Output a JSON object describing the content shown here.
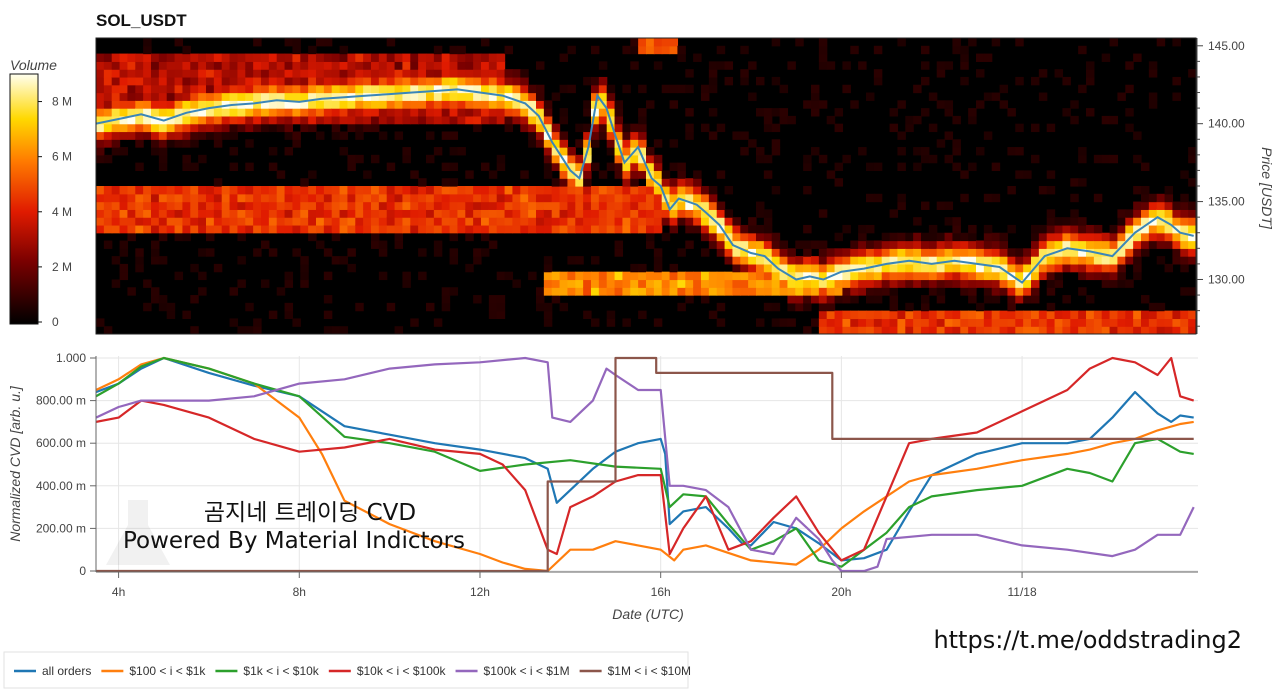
{
  "chart_data": [
    {
      "type": "heatmap",
      "title": "SOL_USDT",
      "ylabel": "Price [USDT]",
      "yticks": [
        "130.00",
        "135.00",
        "140.00",
        "145.00"
      ],
      "ylim": [
        126.5,
        145.5
      ],
      "colorbar": {
        "label": "Volume",
        "ticks": [
          "0",
          "2 M",
          "4 M",
          "6 M",
          "8 M"
        ],
        "range": [
          0,
          9000000
        ]
      },
      "price_line": {
        "name": "price",
        "color": "#3a86b8",
        "x": [
          3.5,
          4.0,
          4.5,
          5.0,
          5.5,
          6.0,
          6.5,
          7.0,
          7.5,
          8.0,
          8.5,
          9.0,
          9.5,
          10.0,
          10.5,
          11.0,
          11.5,
          12.0,
          12.5,
          13.0,
          13.3,
          13.6,
          14.0,
          14.2,
          14.4,
          14.6,
          14.8,
          15.0,
          15.2,
          15.5,
          15.8,
          16.0,
          16.2,
          16.4,
          16.6,
          16.8,
          17.0,
          17.3,
          17.6,
          18.0,
          18.3,
          18.6,
          19.0,
          19.3,
          19.6,
          20.0,
          20.5,
          21.0,
          21.5,
          22.0,
          22.5,
          23.0,
          23.5,
          24.0,
          24.5,
          25.0,
          25.5,
          26.0,
          26.5,
          27.0,
          27.3,
          27.5,
          27.8
        ],
        "y": [
          140.0,
          140.3,
          140.6,
          140.2,
          140.7,
          141.0,
          141.2,
          141.3,
          141.5,
          141.4,
          141.6,
          141.7,
          141.8,
          141.9,
          142.0,
          142.1,
          142.2,
          142.0,
          141.8,
          141.3,
          140.5,
          138.8,
          137.0,
          136.5,
          138.5,
          141.8,
          141.0,
          139.2,
          137.5,
          138.5,
          136.5,
          136.0,
          134.5,
          135.2,
          135.0,
          134.8,
          134.3,
          133.5,
          132.2,
          131.7,
          131.5,
          130.7,
          130.0,
          130.2,
          130.0,
          130.5,
          130.7,
          131.0,
          131.2,
          131.0,
          131.2,
          131.0,
          130.8,
          129.8,
          131.5,
          132.0,
          131.8,
          131.5,
          133.0,
          134.0,
          133.5,
          133.0,
          132.8
        ]
      }
    },
    {
      "type": "line",
      "ylabel": "Normalized CVD [arb. u.]",
      "xlabel": "Date (UTC)",
      "xticks": [
        "4h",
        "8h",
        "12h",
        "16h",
        "20h",
        "11/18"
      ],
      "yticks": [
        "0",
        "200.00 m",
        "400.00 m",
        "600.00 m",
        "800.00 m",
        "1.000"
      ],
      "ylim": [
        0,
        1
      ],
      "series": [
        {
          "name": "all orders",
          "color": "#1f77b4",
          "x": [
            3.5,
            4.0,
            4.5,
            5.0,
            6.0,
            7.0,
            8.0,
            9.0,
            10.0,
            11.0,
            12.0,
            13.0,
            13.5,
            13.7,
            14.0,
            14.5,
            15.0,
            15.5,
            16.0,
            16.1,
            16.2,
            16.5,
            17.0,
            17.5,
            17.8,
            18.0,
            18.5,
            19.0,
            19.5,
            20.0,
            20.5,
            21.0,
            21.5,
            22.0,
            23.0,
            24.0,
            25.0,
            25.5,
            26.0,
            26.5,
            27.0,
            27.3,
            27.5,
            27.8
          ],
          "y": [
            0.84,
            0.88,
            0.95,
            1.0,
            0.93,
            0.87,
            0.82,
            0.68,
            0.64,
            0.6,
            0.57,
            0.53,
            0.48,
            0.32,
            0.38,
            0.48,
            0.56,
            0.6,
            0.62,
            0.55,
            0.22,
            0.28,
            0.3,
            0.2,
            0.13,
            0.12,
            0.23,
            0.2,
            0.13,
            0.05,
            0.06,
            0.1,
            0.28,
            0.45,
            0.55,
            0.6,
            0.6,
            0.62,
            0.72,
            0.84,
            0.74,
            0.7,
            0.73,
            0.72
          ]
        },
        {
          "name": "$100 < i < $1k",
          "color": "#ff7f0e",
          "x": [
            3.5,
            4.0,
            4.5,
            5.0,
            6.0,
            7.0,
            7.5,
            8.0,
            8.5,
            9.0,
            10.0,
            11.0,
            12.0,
            12.5,
            13.0,
            13.5,
            14.0,
            14.5,
            15.0,
            15.5,
            16.0,
            16.3,
            16.5,
            17.0,
            18.0,
            19.0,
            19.5,
            20.0,
            20.5,
            21.0,
            21.5,
            22.0,
            23.0,
            24.0,
            25.0,
            25.5,
            26.0,
            26.5,
            27.0,
            27.5,
            27.8
          ],
          "y": [
            0.85,
            0.9,
            0.97,
            1.0,
            0.95,
            0.88,
            0.8,
            0.72,
            0.55,
            0.33,
            0.22,
            0.14,
            0.08,
            0.04,
            0.01,
            0.0,
            0.1,
            0.1,
            0.14,
            0.12,
            0.1,
            0.05,
            0.1,
            0.12,
            0.05,
            0.03,
            0.1,
            0.2,
            0.28,
            0.35,
            0.42,
            0.45,
            0.48,
            0.52,
            0.55,
            0.57,
            0.6,
            0.62,
            0.66,
            0.69,
            0.7
          ]
        },
        {
          "name": "$1k < i < $10k",
          "color": "#2ca02c",
          "x": [
            3.5,
            4.0,
            4.5,
            5.0,
            6.0,
            7.0,
            8.0,
            9.0,
            10.0,
            11.0,
            12.0,
            13.0,
            14.0,
            15.0,
            16.0,
            16.2,
            16.5,
            17.0,
            17.5,
            18.0,
            18.5,
            19.0,
            19.5,
            20.0,
            20.5,
            21.0,
            21.5,
            22.0,
            23.0,
            24.0,
            25.0,
            25.5,
            26.0,
            26.5,
            27.0,
            27.5,
            27.8
          ],
          "y": [
            0.82,
            0.88,
            0.96,
            1.0,
            0.95,
            0.88,
            0.82,
            0.63,
            0.6,
            0.56,
            0.47,
            0.5,
            0.52,
            0.49,
            0.48,
            0.3,
            0.36,
            0.35,
            0.22,
            0.1,
            0.14,
            0.2,
            0.05,
            0.02,
            0.1,
            0.18,
            0.3,
            0.35,
            0.38,
            0.4,
            0.48,
            0.46,
            0.42,
            0.6,
            0.62,
            0.56,
            0.55
          ]
        },
        {
          "name": "$10k < i < $100k",
          "color": "#d62728",
          "x": [
            3.5,
            4.0,
            4.5,
            5.0,
            6.0,
            7.0,
            8.0,
            9.0,
            10.0,
            11.0,
            12.0,
            12.5,
            13.0,
            13.5,
            13.7,
            14.0,
            14.5,
            15.0,
            15.5,
            16.0,
            16.2,
            16.5,
            17.0,
            17.5,
            18.0,
            18.5,
            19.0,
            19.5,
            20.0,
            20.5,
            21.0,
            21.5,
            22.0,
            23.0,
            24.0,
            25.0,
            25.5,
            26.0,
            26.5,
            27.0,
            27.3,
            27.5,
            27.8
          ],
          "y": [
            0.7,
            0.72,
            0.8,
            0.78,
            0.72,
            0.62,
            0.56,
            0.58,
            0.62,
            0.57,
            0.55,
            0.5,
            0.38,
            0.1,
            0.08,
            0.3,
            0.35,
            0.42,
            0.45,
            0.45,
            0.08,
            0.2,
            0.35,
            0.1,
            0.14,
            0.25,
            0.35,
            0.18,
            0.05,
            0.1,
            0.35,
            0.6,
            0.62,
            0.65,
            0.75,
            0.85,
            0.95,
            1.0,
            0.98,
            0.92,
            1.0,
            0.82,
            0.8
          ]
        },
        {
          "name": "$100k < i < $1M",
          "color": "#9467bd",
          "x": [
            3.5,
            4.0,
            4.5,
            5.0,
            6.0,
            7.0,
            8.0,
            9.0,
            10.0,
            11.0,
            12.0,
            13.0,
            13.5,
            13.6,
            14.0,
            14.5,
            14.8,
            15.0,
            15.5,
            16.0,
            16.2,
            16.5,
            17.0,
            17.5,
            18.0,
            18.5,
            19.0,
            19.5,
            19.8,
            20.0,
            20.5,
            20.8,
            21.0,
            22.0,
            23.0,
            24.0,
            25.0,
            26.0,
            26.5,
            27.0,
            27.5,
            27.8
          ],
          "y": [
            0.72,
            0.77,
            0.8,
            0.8,
            0.8,
            0.82,
            0.88,
            0.9,
            0.95,
            0.97,
            0.98,
            1.0,
            0.98,
            0.72,
            0.7,
            0.8,
            0.95,
            0.92,
            0.85,
            0.85,
            0.4,
            0.4,
            0.38,
            0.3,
            0.1,
            0.08,
            0.25,
            0.15,
            0.05,
            0.0,
            0.0,
            0.02,
            0.15,
            0.17,
            0.17,
            0.12,
            0.1,
            0.07,
            0.1,
            0.17,
            0.17,
            0.3
          ]
        },
        {
          "name": "$1M < i < $10M",
          "color": "#8c564b",
          "x": [
            3.5,
            13.5,
            13.5,
            15.0,
            15.0,
            15.9,
            15.9,
            16.3,
            16.3,
            19.8,
            19.8,
            27.8
          ],
          "y": [
            0.0,
            0.0,
            0.42,
            0.42,
            1.0,
            1.0,
            0.93,
            0.93,
            0.93,
            0.93,
            0.62,
            0.62
          ]
        }
      ]
    }
  ],
  "watermark": {
    "line1": "곰지네 트레이딩 CVD",
    "line2": "Powered By Material Indictors"
  },
  "link": {
    "text": "https://t.me/oddstrading2"
  }
}
